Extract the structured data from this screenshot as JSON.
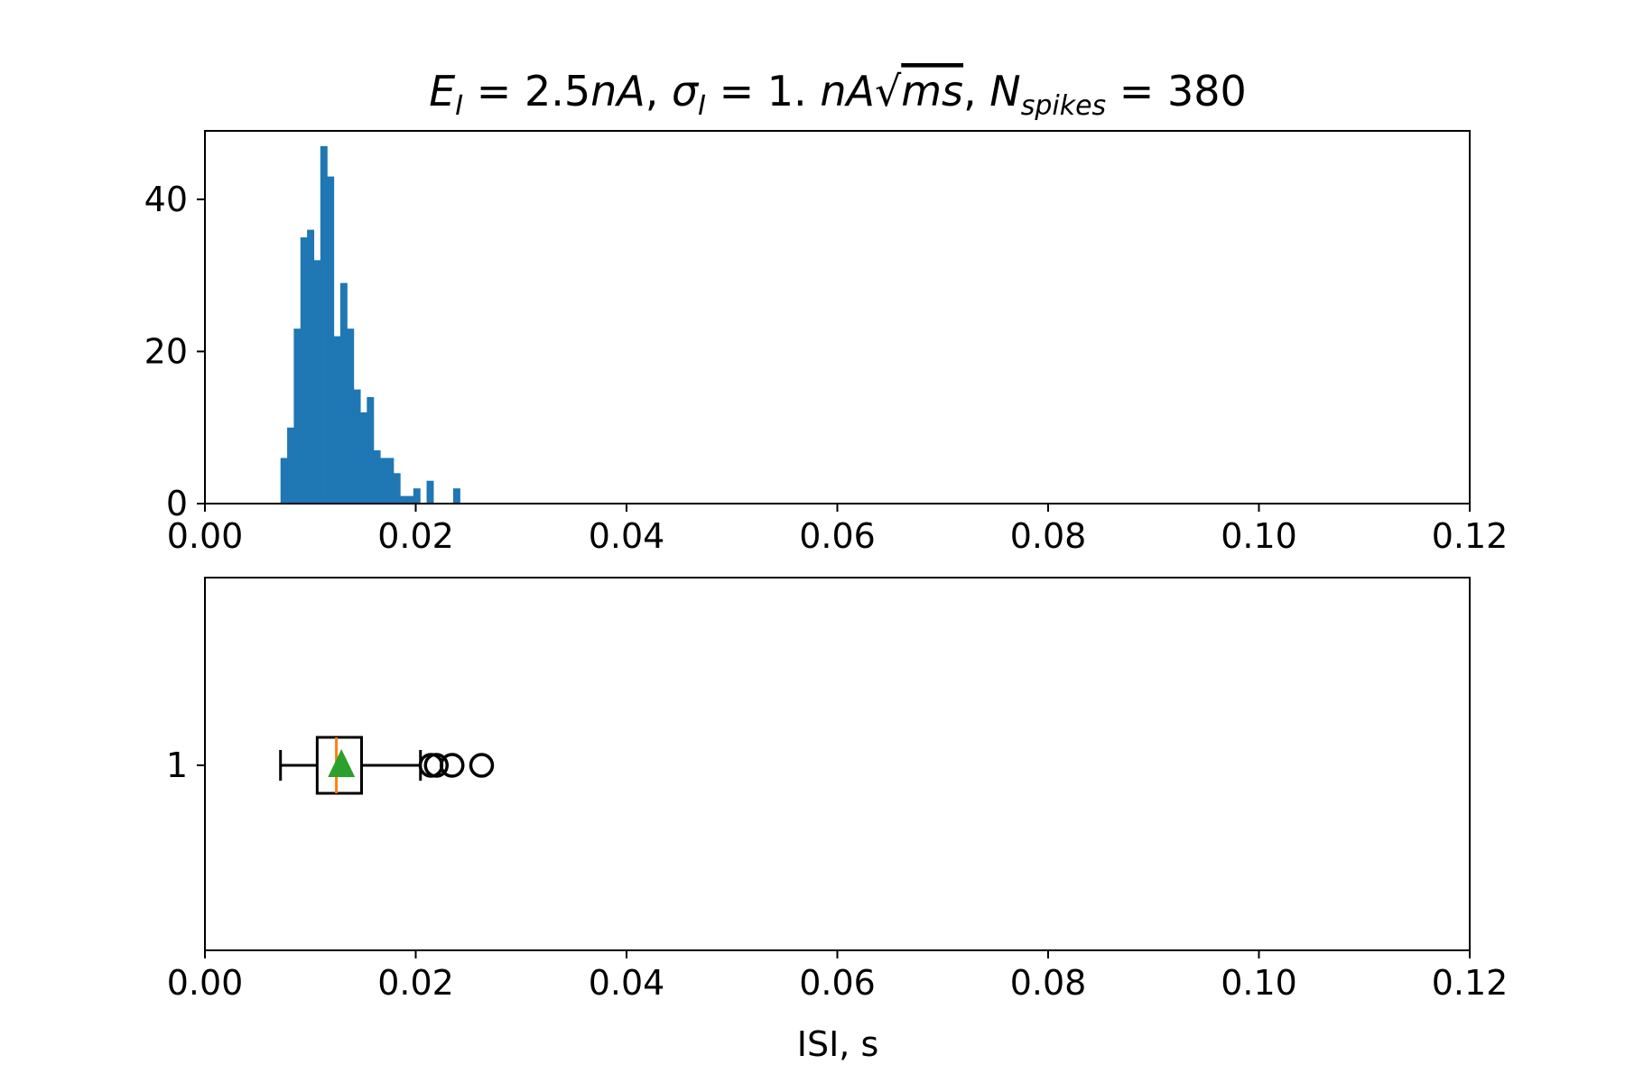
{
  "chart_data": [
    {
      "type": "histogram",
      "title": {
        "segments": [
          {
            "t": "E",
            "style": "it"
          },
          {
            "t": "I",
            "style": "sub"
          },
          {
            "t": " = 2.5",
            "style": "rm"
          },
          {
            "t": "nA",
            "style": "it"
          },
          {
            "t": ", ",
            "style": "rm"
          },
          {
            "t": "σ",
            "style": "it"
          },
          {
            "t": "I",
            "style": "sub"
          },
          {
            "t": " = 1. ",
            "style": "rm"
          },
          {
            "t": "nA",
            "style": "it"
          },
          {
            "t": "√",
            "style": "rm"
          },
          {
            "t": "ms",
            "style": "it-over"
          },
          {
            "t": ", ",
            "style": "rm"
          },
          {
            "t": "N",
            "style": "it"
          },
          {
            "t": "spikes",
            "style": "sub"
          },
          {
            "t": " = 380",
            "style": "rm"
          }
        ]
      },
      "xlim": [
        0,
        0.12
      ],
      "ylim": [
        0,
        49
      ],
      "x_ticks": [
        "0.00",
        "0.02",
        "0.04",
        "0.06",
        "0.08",
        "0.10",
        "0.12"
      ],
      "y_ticks": [
        "0",
        "20",
        "40"
      ],
      "bar_color": "#1f77b4",
      "bin_width": 0.000629,
      "bin_starts": [
        0.00717,
        0.0078,
        0.00843,
        0.00906,
        0.00969,
        0.01032,
        0.01095,
        0.01158,
        0.01221,
        0.01284,
        0.01347,
        0.0141,
        0.01473,
        0.01536,
        0.01599,
        0.01662,
        0.01725,
        0.01788,
        0.01851,
        0.01914,
        0.01977,
        0.0204,
        0.02103,
        0.02166,
        0.02229,
        0.02292,
        0.02355,
        0.02418,
        0.02481,
        0.02544,
        0.02607
      ],
      "counts": [
        6,
        10,
        23,
        35,
        36,
        32,
        47,
        43,
        22,
        29,
        23,
        15,
        12,
        14,
        7,
        6,
        6,
        4,
        1,
        1,
        2,
        0,
        3,
        0,
        0,
        0,
        2,
        0,
        0,
        0,
        0
      ]
    },
    {
      "type": "boxplot",
      "orientation": "horizontal",
      "xlabel": "ISI, s",
      "xlim": [
        0,
        0.12
      ],
      "x_ticks": [
        "0.00",
        "0.02",
        "0.04",
        "0.06",
        "0.08",
        "0.10",
        "0.12"
      ],
      "y_ticks": [
        "1"
      ],
      "position": 1,
      "whisker_low": 0.00717,
      "q1": 0.01065,
      "median": 0.01247,
      "q3": 0.01486,
      "whisker_high": 0.02045,
      "mean": 0.01295,
      "outliers": [
        0.02145,
        0.02195,
        0.02345,
        0.02625
      ],
      "median_color": "#ff7f0e",
      "mean_color": "#2ca02c"
    }
  ]
}
